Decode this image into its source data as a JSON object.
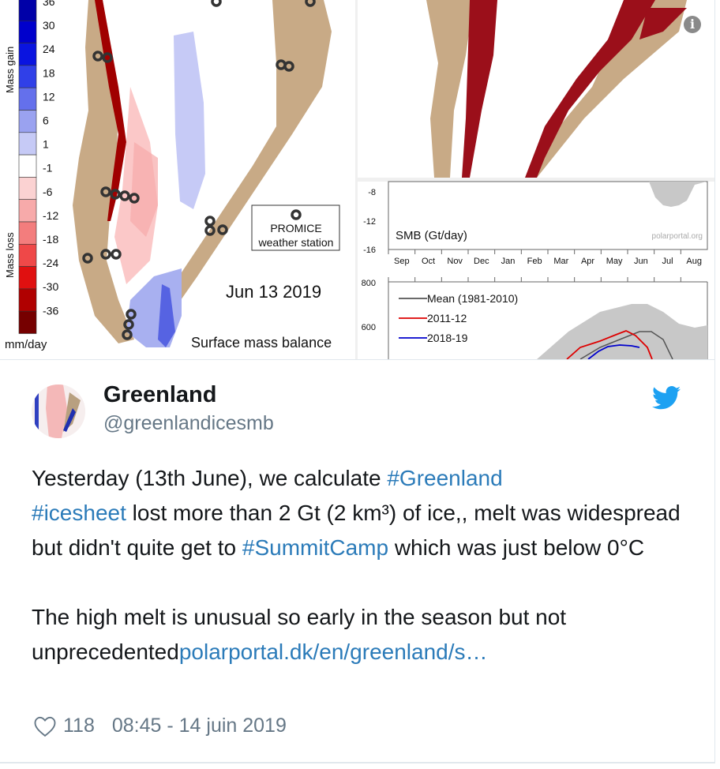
{
  "media": {
    "map": {
      "colorbar_labels_top": [
        "36",
        "30",
        "24",
        "18",
        "12",
        "6",
        "1",
        "-1",
        "-6",
        "-12",
        "-18",
        "-24",
        "-30",
        "-36"
      ],
      "colorbar_colors": [
        "#0000a8",
        "#0000cc",
        "#0a14e0",
        "#3040e8",
        "#6470ec",
        "#9aa2f0",
        "#c6caf6",
        "#ffffff",
        "#fbd2d2",
        "#f7aaaa",
        "#f37d7d",
        "#ef4848",
        "#e01010",
        "#b00000",
        "#760000"
      ],
      "mass_gain_label": "Mass gain",
      "mass_loss_label": "Mass loss",
      "unit_label": "mm/day",
      "legend_station_label_1": "PROMICE",
      "legend_station_label_2": "weather station",
      "date_label": "Jun 13 2019",
      "caption": "Surface mass balance",
      "land_color": "#c8aa86"
    },
    "smb_chart": {
      "title": "SMB (Gt/day)",
      "watermark": "polarportal.org",
      "y_ticks": [
        "-8",
        "-12",
        "-16"
      ],
      "months": [
        "Sep",
        "Oct",
        "Nov",
        "Dec",
        "Jan",
        "Feb",
        "Mar",
        "Apr",
        "May",
        "Jun",
        "Jul",
        "Aug"
      ]
    },
    "acc_chart": {
      "y_ticks": [
        "800",
        "600"
      ],
      "legend": [
        {
          "label": "Mean (1981-2010)",
          "color": "#555555"
        },
        {
          "label": "2011-12",
          "color": "#dd0000"
        },
        {
          "label": "2018-19",
          "color": "#0000cc"
        }
      ]
    },
    "info_icon": "i"
  },
  "tweet": {
    "name": "Greenland",
    "handle": "@greenlandicesmb",
    "text_1a": "Yesterday (13th June), we calculate ",
    "hashtag_1": "#Greenland",
    "hashtag_2": "#icesheet",
    "text_1b": " lost more than 2 Gt (2 km³) of ice,, melt was widespread but didn't quite get to ",
    "hashtag_3": "#SummitCamp",
    "text_1c": " which was just below 0°C",
    "text_2a": "The high melt is unusual so early in the season but not unprecedented",
    "link": "polarportal.dk/en/greenland/s…",
    "likes": "118",
    "timestamp": "08:45 - 14 juin 2019",
    "brand_color": "#1da1f2",
    "link_color": "#2b7bb9"
  }
}
